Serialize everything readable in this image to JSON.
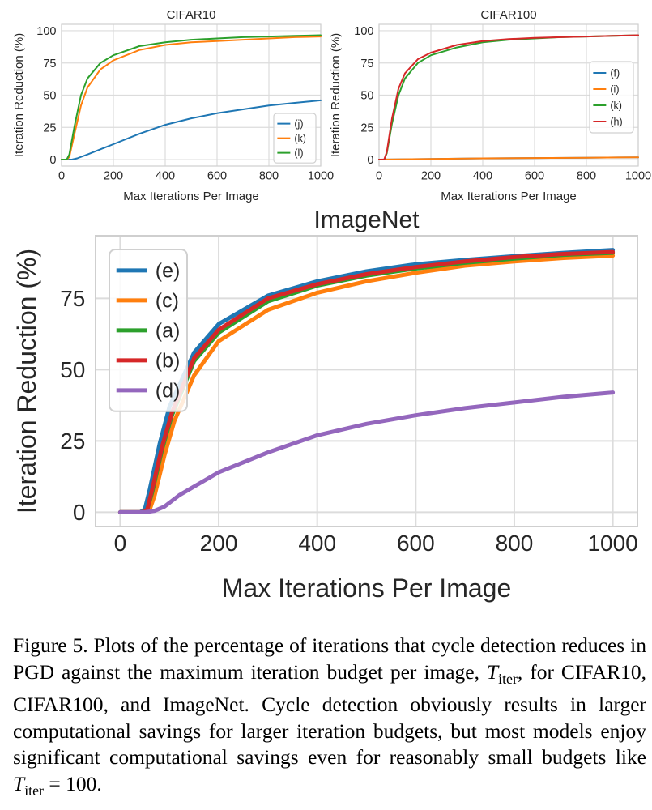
{
  "chart_data": [
    {
      "type": "line",
      "title": "CIFAR10",
      "xlabel": "Max Iterations Per Image",
      "ylabel": "Iteration Reduction (%)",
      "xlim": [
        0,
        1000
      ],
      "ylim": [
        0,
        100
      ],
      "xticks": [
        "0",
        "200",
        "400",
        "600",
        "800",
        "1000"
      ],
      "yticks": [
        "0",
        "25",
        "50",
        "75",
        "100"
      ],
      "legend_position": "bottom-right",
      "series": [
        {
          "name": "(j)",
          "color": "#1f77b4",
          "x": [
            0,
            25,
            40,
            60,
            100,
            150,
            200,
            300,
            400,
            500,
            600,
            700,
            800,
            900,
            1000
          ],
          "y": [
            0,
            0,
            0,
            1,
            4,
            8,
            12,
            20,
            27,
            32,
            36,
            39,
            42,
            44,
            46
          ]
        },
        {
          "name": "(k)",
          "color": "#ff7f0e",
          "x": [
            0,
            20,
            30,
            50,
            75,
            100,
            150,
            200,
            300,
            400,
            500,
            600,
            700,
            800,
            900,
            1000
          ],
          "y": [
            0,
            0,
            2,
            20,
            42,
            56,
            70,
            77,
            85,
            89,
            91,
            92,
            93,
            94,
            95,
            95.5
          ]
        },
        {
          "name": "(l)",
          "color": "#2ca02c",
          "x": [
            0,
            20,
            30,
            50,
            75,
            100,
            150,
            200,
            300,
            400,
            500,
            600,
            700,
            800,
            900,
            1000
          ],
          "y": [
            0,
            0,
            4,
            26,
            50,
            63,
            75,
            81,
            88,
            91,
            93,
            94,
            95,
            95.5,
            96,
            96.5
          ]
        }
      ]
    },
    {
      "type": "line",
      "title": "CIFAR100",
      "xlabel": "Max Iterations Per Image",
      "ylabel": "Iteration Reduction (%)",
      "xlim": [
        0,
        1000
      ],
      "ylim": [
        0,
        100
      ],
      "xticks": [
        "0",
        "200",
        "400",
        "600",
        "800",
        "1000"
      ],
      "yticks": [
        "0",
        "25",
        "50",
        "75",
        "100"
      ],
      "legend_position": "right",
      "series": [
        {
          "name": "(f)",
          "color": "#1f77b4",
          "x": [
            0,
            200,
            400,
            600,
            800,
            1000
          ],
          "y": [
            0,
            0.5,
            1,
            1.2,
            1.5,
            1.8
          ]
        },
        {
          "name": "(i)",
          "color": "#ff7f0e",
          "x": [
            0,
            200,
            400,
            600,
            800,
            1000
          ],
          "y": [
            0,
            0.5,
            1,
            1.2,
            1.5,
            1.8
          ]
        },
        {
          "name": "(k)",
          "color": "#2ca02c",
          "x": [
            0,
            20,
            30,
            50,
            75,
            100,
            150,
            200,
            300,
            400,
            500,
            600,
            700,
            800,
            900,
            1000
          ],
          "y": [
            0,
            0,
            5,
            28,
            50,
            63,
            75,
            81,
            87,
            91,
            93,
            94,
            95,
            95.5,
            96,
            96.5
          ]
        },
        {
          "name": "(h)",
          "color": "#d62728",
          "x": [
            0,
            20,
            30,
            50,
            75,
            100,
            150,
            200,
            300,
            400,
            500,
            600,
            700,
            800,
            900,
            1000
          ],
          "y": [
            0,
            0,
            6,
            32,
            55,
            67,
            78,
            83,
            89,
            92,
            93.5,
            94.5,
            95,
            95.5,
            96,
            96.5
          ]
        }
      ]
    },
    {
      "type": "line",
      "title": "ImageNet",
      "xlabel": "Max Iterations Per Image",
      "ylabel": "Iteration Reduction (%)",
      "xlim": [
        -50,
        1050
      ],
      "ylim": [
        -5,
        97
      ],
      "xticks": [
        "0",
        "200",
        "400",
        "600",
        "800",
        "1000"
      ],
      "yticks": [
        "0",
        "25",
        "50",
        "75"
      ],
      "legend_position": "top-left",
      "series": [
        {
          "name": "(e)",
          "color": "#1f77b4",
          "x": [
            0,
            40,
            50,
            60,
            80,
            100,
            150,
            200,
            300,
            400,
            500,
            600,
            700,
            800,
            900,
            1000
          ],
          "y": [
            0,
            0,
            1,
            8,
            24,
            37,
            56,
            66,
            76,
            81,
            84.5,
            87,
            88.5,
            89.8,
            91,
            92
          ]
        },
        {
          "name": "(c)",
          "color": "#ff7f0e",
          "x": [
            0,
            50,
            60,
            70,
            90,
            110,
            150,
            200,
            300,
            400,
            500,
            600,
            700,
            800,
            900,
            1000
          ],
          "y": [
            0,
            0,
            1,
            6,
            20,
            32,
            48,
            60,
            71,
            77,
            81,
            84,
            86.5,
            88,
            89.2,
            90
          ]
        },
        {
          "name": "(a)",
          "color": "#2ca02c",
          "x": [
            0,
            45,
            55,
            65,
            85,
            105,
            150,
            200,
            300,
            400,
            500,
            600,
            700,
            800,
            900,
            1000
          ],
          "y": [
            0,
            0,
            1,
            7,
            22,
            34,
            53,
            63,
            74,
            79.5,
            83,
            85.5,
            87.5,
            89,
            90.3,
            91
          ]
        },
        {
          "name": "(b)",
          "color": "#d62728",
          "x": [
            0,
            45,
            55,
            65,
            85,
            105,
            150,
            200,
            300,
            400,
            500,
            600,
            700,
            800,
            900,
            1000
          ],
          "y": [
            0,
            0,
            1,
            8,
            23,
            35,
            54,
            64,
            75,
            80,
            83.5,
            86,
            88,
            89.5,
            90.6,
            91.3
          ]
        },
        {
          "name": "(d)",
          "color": "#9467bd",
          "x": [
            0,
            50,
            70,
            90,
            120,
            150,
            200,
            300,
            400,
            500,
            600,
            700,
            800,
            900,
            1000
          ],
          "y": [
            0,
            0,
            0.5,
            2,
            6,
            9,
            14,
            21,
            27,
            31,
            34,
            36.5,
            38.5,
            40.5,
            42
          ]
        }
      ]
    }
  ],
  "caption": {
    "label": "Figure 5.",
    "text_1": " Plots of the percentage of iterations that cycle detection reduces in PGD against the maximum iteration budget per image,",
    "math_var": "T",
    "math_sub": "iter",
    "text_2": ", for CIFAR10, CIFAR100, and ImageNet. Cycle detection obviously results in larger computational savings for larger iteration budgets, but most models enjoy significant computational savings even for reasonably small budgets like",
    "math_eq": "= 100",
    "text_3": "."
  }
}
